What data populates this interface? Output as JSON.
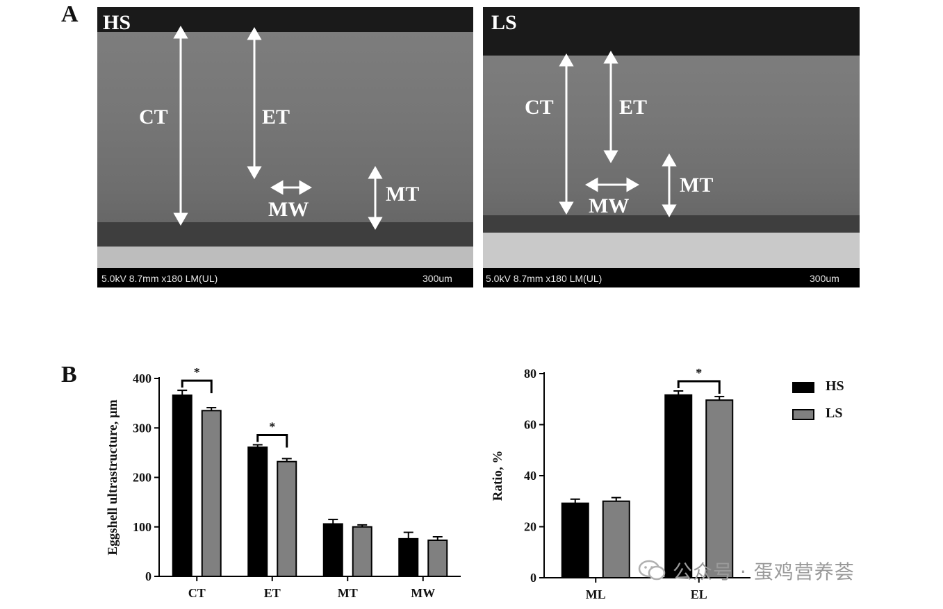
{
  "panels": {
    "a_letter": "A",
    "b_letter": "B"
  },
  "sem_images": [
    {
      "label": "HS",
      "info": "5.0kV 8.7mm x180 LM(UL)",
      "scale": "300um",
      "annotations": {
        "ct": "CT",
        "et": "ET",
        "mt": "MT",
        "mw": "MW"
      }
    },
    {
      "label": "LS",
      "info": "5.0kV 8.7mm x180 LM(UL)",
      "scale": "300um",
      "annotations": {
        "ct": "CT",
        "et": "ET",
        "mt": "MT",
        "mw": "MW"
      }
    }
  ],
  "legend": {
    "items": [
      {
        "name": "HS",
        "color": "#000000"
      },
      {
        "name": "LS",
        "color": "#808080"
      }
    ]
  },
  "chart_data": [
    {
      "type": "bar",
      "ylabel": "Eggshell ultrastructure, μm",
      "ylim": [
        0,
        400
      ],
      "yticks": [
        "0",
        "100",
        "200",
        "300",
        "400"
      ],
      "categories": [
        "CT",
        "ET",
        "MT",
        "MW"
      ],
      "series": [
        {
          "name": "HS",
          "color": "#000000",
          "values": [
            366,
            261,
            106,
            76
          ],
          "errors": [
            10,
            5,
            9,
            13
          ]
        },
        {
          "name": "LS",
          "color": "#808080",
          "values": [
            335,
            232,
            100,
            73
          ],
          "errors": [
            6,
            6,
            4,
            7
          ]
        }
      ],
      "significance": [
        {
          "category": "CT",
          "label": "*"
        },
        {
          "category": "ET",
          "label": "*"
        }
      ]
    },
    {
      "type": "bar",
      "ylabel": "Ratio, %",
      "ylim": [
        0,
        80
      ],
      "yticks": [
        "0",
        "20",
        "40",
        "60",
        "80"
      ],
      "categories": [
        "ML",
        "EL"
      ],
      "series": [
        {
          "name": "HS",
          "color": "#000000",
          "values": [
            29.2,
            71.6
          ],
          "errors": [
            1.6,
            1.6
          ]
        },
        {
          "name": "LS",
          "color": "#808080",
          "values": [
            30.0,
            69.6
          ],
          "errors": [
            1.4,
            1.4
          ]
        }
      ],
      "significance": [
        {
          "category": "EL",
          "label": "*"
        }
      ]
    }
  ],
  "watermark": "公众号 · 蛋鸡营养荟"
}
